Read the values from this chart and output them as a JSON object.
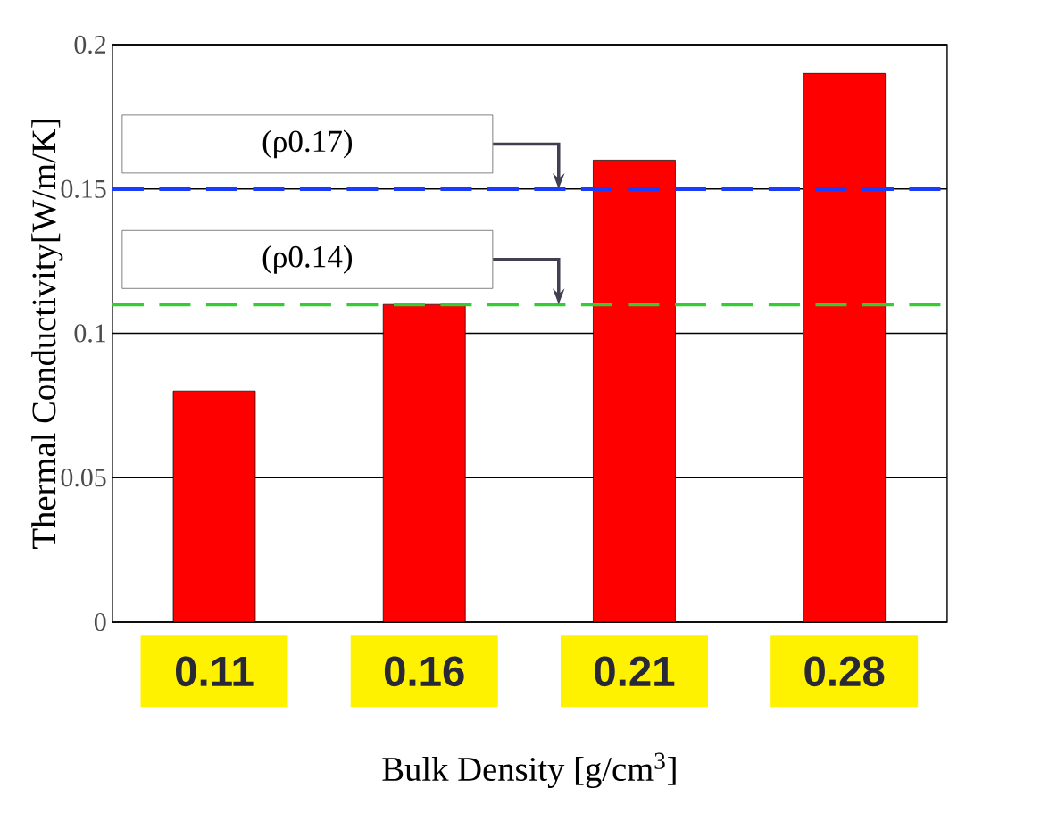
{
  "chart_data": {
    "type": "bar",
    "xlabel": "Bulk Density [g/cm$^{3}$]",
    "ylabel": "Thermal Conductivity[W/m/K]",
    "categories": [
      "0.11",
      "0.16",
      "0.21",
      "0.28"
    ],
    "values": [
      0.08,
      0.11,
      0.16,
      0.19
    ],
    "color": "#ff0000",
    "ylim": [
      0,
      0.2
    ],
    "yticks": [
      0,
      0.05,
      0.1,
      0.15,
      0.2
    ],
    "grid": "y",
    "ref_lines": [
      {
        "axis": "y",
        "value": 0.15,
        "label": "(ρ0.17)",
        "color": "#1a3cff",
        "line_style": "dashed"
      },
      {
        "axis": "y",
        "value": 0.11,
        "label": "(ρ0.14)",
        "color": "#33cc33",
        "line_style": "dashed"
      }
    ]
  }
}
